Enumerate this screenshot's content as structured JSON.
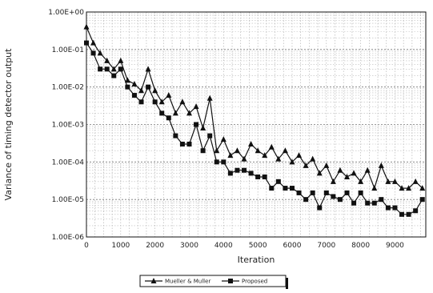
{
  "chart_data": {
    "type": "line",
    "xlabel": "Iteration",
    "ylabel": "Variance of timing detector output",
    "x_ticks": [
      0,
      1000,
      2000,
      3000,
      4000,
      5000,
      6000,
      7000,
      8000,
      9000
    ],
    "x_tick_labels": [
      "0",
      "1000",
      "2000",
      "3000",
      "4000",
      "5000",
      "6000",
      "7000",
      "8000",
      "9000"
    ],
    "xlim": [
      0,
      9900
    ],
    "y_scale": "log",
    "ylim": [
      1e-06,
      1
    ],
    "y_tick_values": [
      1,
      0.1,
      0.01,
      0.001,
      0.0001,
      1e-05,
      1e-06
    ],
    "y_tick_labels": [
      "1.00E+00",
      "1.00E-01",
      "1.00E-02",
      "1.00E-03",
      "1.00E-04",
      "1.00E-05",
      "1.00E-06"
    ],
    "grid": true,
    "legend_position": "bottom-center",
    "series": [
      {
        "name": "Mueller & Muller",
        "marker": "triangle",
        "color": "#111111",
        "x": [
          0,
          200,
          400,
          600,
          800,
          1000,
          1200,
          1400,
          1600,
          1800,
          2000,
          2200,
          2400,
          2600,
          2800,
          3000,
          3200,
          3400,
          3600,
          3800,
          4000,
          4200,
          4400,
          4600,
          4800,
          5000,
          5200,
          5400,
          5600,
          5800,
          6000,
          6200,
          6400,
          6600,
          6800,
          7000,
          7200,
          7400,
          7600,
          7800,
          8000,
          8200,
          8400,
          8600,
          8800,
          9000,
          9200,
          9400,
          9600,
          9800
        ],
        "y": [
          0.4,
          0.15,
          0.08,
          0.05,
          0.03,
          0.05,
          0.015,
          0.012,
          0.008,
          0.03,
          0.008,
          0.004,
          0.006,
          0.002,
          0.004,
          0.002,
          0.003,
          0.0008,
          0.005,
          0.0002,
          0.0004,
          0.00015,
          0.0002,
          0.00012,
          0.0003,
          0.0002,
          0.00015,
          0.00025,
          0.00012,
          0.0002,
          0.0001,
          0.00015,
          8e-05,
          0.00012,
          5e-05,
          8e-05,
          3e-05,
          6e-05,
          4e-05,
          5e-05,
          3e-05,
          6e-05,
          2e-05,
          8e-05,
          3e-05,
          3e-05,
          2e-05,
          2e-05,
          3e-05,
          2e-05
        ]
      },
      {
        "name": "Proposed",
        "marker": "square",
        "color": "#111111",
        "x": [
          0,
          200,
          400,
          600,
          800,
          1000,
          1200,
          1400,
          1600,
          1800,
          2000,
          2200,
          2400,
          2600,
          2800,
          3000,
          3200,
          3400,
          3600,
          3800,
          4000,
          4200,
          4400,
          4600,
          4800,
          5000,
          5200,
          5400,
          5600,
          5800,
          6000,
          6200,
          6400,
          6600,
          6800,
          7000,
          7200,
          7400,
          7600,
          7800,
          8000,
          8200,
          8400,
          8600,
          8800,
          9000,
          9200,
          9400,
          9600,
          9800
        ],
        "y": [
          0.15,
          0.08,
          0.03,
          0.03,
          0.02,
          0.03,
          0.01,
          0.006,
          0.004,
          0.01,
          0.004,
          0.002,
          0.0015,
          0.0005,
          0.0003,
          0.0003,
          0.001,
          0.0002,
          0.0005,
          0.0001,
          0.0001,
          5e-05,
          6e-05,
          6e-05,
          5e-05,
          4e-05,
          4e-05,
          2e-05,
          3e-05,
          2e-05,
          2e-05,
          1.5e-05,
          1e-05,
          1.5e-05,
          6e-06,
          1.5e-05,
          1.2e-05,
          1e-05,
          1.5e-05,
          8e-06,
          1.5e-05,
          8e-06,
          8e-06,
          1e-05,
          6e-06,
          6e-06,
          4e-06,
          4e-06,
          5e-06,
          1e-05
        ]
      }
    ]
  }
}
